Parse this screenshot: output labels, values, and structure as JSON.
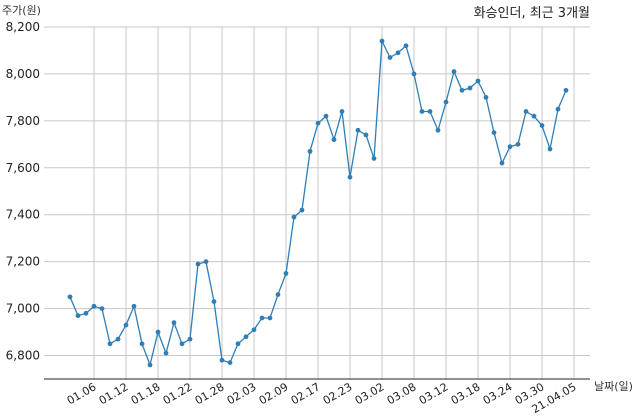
{
  "chart_data": {
    "type": "line",
    "title": "화승인더, 최근 3개월",
    "ylabel": "주가(원)",
    "xlabel": "날짜(일)",
    "ylim": [
      6700,
      8200
    ],
    "yticks": [
      6800,
      7000,
      7200,
      7400,
      7600,
      7800,
      8000,
      8200
    ],
    "ytick_labels": [
      "6,800",
      "7,000",
      "7,200",
      "7,400",
      "7,600",
      "7,800",
      "8,000",
      "8,200"
    ],
    "xtick_labels": [
      "01.06",
      "01.12",
      "01.18",
      "01.22",
      "01.28",
      "02.03",
      "02.09",
      "02.17",
      "02.23",
      "03.02",
      "03.08",
      "03.12",
      "03.18",
      "03.24",
      "03.30",
      "21.04.05"
    ],
    "xtick_index": [
      3,
      7,
      11,
      15,
      19,
      23,
      27,
      31,
      35,
      39,
      43,
      47,
      51,
      55,
      59,
      63
    ],
    "grid": true,
    "color": "#2e7fb8",
    "series": [
      {
        "values": [
          7050,
          6970,
          6980,
          7010,
          7000,
          6850,
          6870,
          6930,
          7010,
          6850,
          6760,
          6900,
          6810,
          6940,
          6850,
          6870,
          7190,
          7200,
          7030,
          6780,
          6770,
          6850,
          6880,
          6910,
          6960,
          6960,
          7060,
          7150,
          7390,
          7420,
          7670,
          7790,
          7820,
          7720,
          7840,
          7560,
          7760,
          7740,
          7640,
          8140,
          8070,
          8090,
          8120,
          8000,
          7840,
          7840,
          7760,
          7880,
          8010,
          7930,
          7940,
          7970,
          7900,
          7750,
          7620,
          7690,
          7700,
          7840,
          7820,
          7780,
          7680,
          7850,
          7930
        ]
      }
    ]
  }
}
